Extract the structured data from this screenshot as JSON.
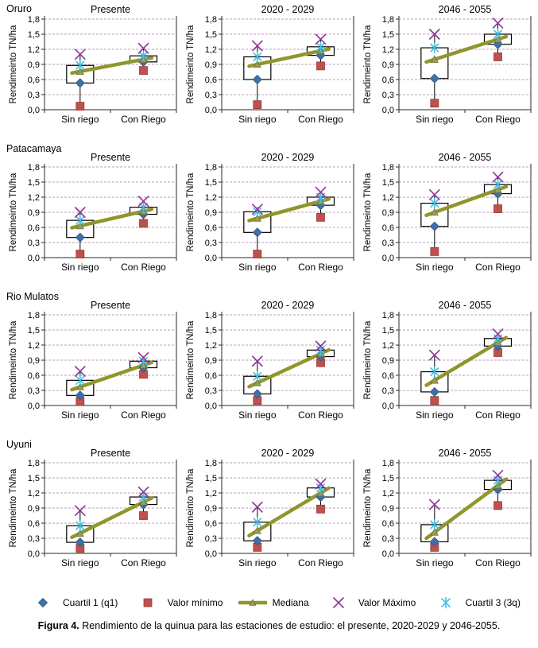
{
  "figure": {
    "caption_bold": "Figura 4.",
    "caption_rest": " Rendimiento de la quinua para las estaciones de estudio: el presente, 2020-2029 y 2046-2055."
  },
  "legend": [
    {
      "key": "q1",
      "label": "Cuartil 1 (q1)",
      "marker": "diamond",
      "color": "#4070a8"
    },
    {
      "key": "min",
      "label": "Valor mínimo",
      "marker": "square",
      "color": "#c0504d"
    },
    {
      "key": "median",
      "label": "Mediana",
      "marker": "line-triangle",
      "color": "#8f962b"
    },
    {
      "key": "max",
      "label": "Valor Máximo",
      "marker": "x",
      "color": "#8f3a96"
    },
    {
      "key": "q3",
      "label": "Cuartil 3 (3q)",
      "marker": "asterisk",
      "color": "#3ec1e8"
    }
  ],
  "chart_data": {
    "type": "box-scatter-grid",
    "ylabel": "Rendimeinto TN/ha",
    "categories": [
      "Sin riego",
      "Con Riego"
    ],
    "yticks": [
      "0,0",
      "0,3",
      "0,6",
      "0,9",
      "1,2",
      "1,5",
      "1,8"
    ],
    "ytick_values": [
      0,
      0.3,
      0.6,
      0.9,
      1.2,
      1.5,
      1.8
    ],
    "ylim": [
      0,
      1.8
    ],
    "grid": "dashed-horizontal",
    "legend_position": "bottom",
    "columns": [
      "Presente",
      "2020 - 2029",
      "2046 - 2055"
    ],
    "rows": [
      {
        "station": "Oruro",
        "charts": [
          {
            "title": "Presente",
            "series": {
              "sin": {
                "min": 0.07,
                "q1": 0.53,
                "med": 0.76,
                "q3": 0.88,
                "max": 1.1
              },
              "con": {
                "min": 0.78,
                "q1": 0.95,
                "med": 1.0,
                "q3": 1.07,
                "max": 1.22
              }
            }
          },
          {
            "title": "2020 - 2029",
            "series": {
              "sin": {
                "min": 0.1,
                "q1": 0.6,
                "med": 0.9,
                "q3": 1.05,
                "max": 1.27
              },
              "con": {
                "min": 0.87,
                "q1": 1.08,
                "med": 1.17,
                "q3": 1.25,
                "max": 1.4
              }
            }
          },
          {
            "title": "2046 - 2055",
            "series": {
              "sin": {
                "min": 0.13,
                "q1": 0.62,
                "med": 1.0,
                "q3": 1.23,
                "max": 1.5
              },
              "con": {
                "min": 1.05,
                "q1": 1.3,
                "med": 1.4,
                "q3": 1.5,
                "max": 1.72
              }
            }
          }
        ]
      },
      {
        "station": "Patacamaya",
        "charts": [
          {
            "title": "Presente",
            "series": {
              "sin": {
                "min": 0.07,
                "q1": 0.4,
                "med": 0.63,
                "q3": 0.74,
                "max": 0.9
              },
              "con": {
                "min": 0.68,
                "q1": 0.86,
                "med": 0.92,
                "q3": 1.0,
                "max": 1.12
              }
            }
          },
          {
            "title": "2020 - 2029",
            "series": {
              "sin": {
                "min": 0.07,
                "q1": 0.5,
                "med": 0.78,
                "q3": 0.91,
                "max": 0.96
              },
              "con": {
                "min": 0.8,
                "q1": 1.04,
                "med": 1.12,
                "q3": 1.2,
                "max": 1.3
              }
            }
          },
          {
            "title": "2046 - 2055",
            "series": {
              "sin": {
                "min": 0.12,
                "q1": 0.62,
                "med": 0.9,
                "q3": 1.08,
                "max": 1.25
              },
              "con": {
                "min": 0.97,
                "q1": 1.27,
                "med": 1.35,
                "q3": 1.45,
                "max": 1.6
              }
            }
          }
        ]
      },
      {
        "station": "Rio Mulatos",
        "charts": [
          {
            "title": "Presente",
            "series": {
              "sin": {
                "min": 0.08,
                "q1": 0.2,
                "med": 0.37,
                "q3": 0.5,
                "max": 0.68
              },
              "con": {
                "min": 0.62,
                "q1": 0.75,
                "med": 0.8,
                "q3": 0.88,
                "max": 0.95
              }
            }
          },
          {
            "title": "2020 - 2029",
            "series": {
              "sin": {
                "min": 0.1,
                "q1": 0.23,
                "med": 0.45,
                "q3": 0.58,
                "max": 0.88
              },
              "con": {
                "min": 0.85,
                "q1": 0.97,
                "med": 1.03,
                "q3": 1.1,
                "max": 1.18
              }
            }
          },
          {
            "title": "2046 - 2055",
            "series": {
              "sin": {
                "min": 0.1,
                "q1": 0.27,
                "med": 0.5,
                "q3": 0.67,
                "max": 1.0
              },
              "con": {
                "min": 1.05,
                "q1": 1.18,
                "med": 1.25,
                "q3": 1.33,
                "max": 1.42
              }
            }
          }
        ]
      },
      {
        "station": "Uyuni",
        "charts": [
          {
            "title": "Presente",
            "series": {
              "sin": {
                "min": 0.1,
                "q1": 0.22,
                "med": 0.4,
                "q3": 0.55,
                "max": 0.85
              },
              "con": {
                "min": 0.75,
                "q1": 0.97,
                "med": 1.02,
                "q3": 1.12,
                "max": 1.22
              }
            }
          },
          {
            "title": "2020 - 2029",
            "series": {
              "sin": {
                "min": 0.12,
                "q1": 0.25,
                "med": 0.45,
                "q3": 0.62,
                "max": 0.92
              },
              "con": {
                "min": 0.88,
                "q1": 1.12,
                "med": 1.2,
                "q3": 1.3,
                "max": 1.38
              }
            }
          },
          {
            "title": "2046 - 2055",
            "series": {
              "sin": {
                "min": 0.12,
                "q1": 0.23,
                "med": 0.42,
                "q3": 0.57,
                "max": 0.97
              },
              "con": {
                "min": 0.95,
                "q1": 1.27,
                "med": 1.35,
                "q3": 1.45,
                "max": 1.55
              }
            }
          }
        ]
      }
    ],
    "colors": {
      "q1": "#4070a8",
      "min": "#c0504d",
      "median_line": "#8f962b",
      "median_marker": "#9a9a52",
      "max": "#8f3a96",
      "q3": "#3ec1e8",
      "grid": "#b9a3b9",
      "axis": "#2a2a2a"
    }
  }
}
